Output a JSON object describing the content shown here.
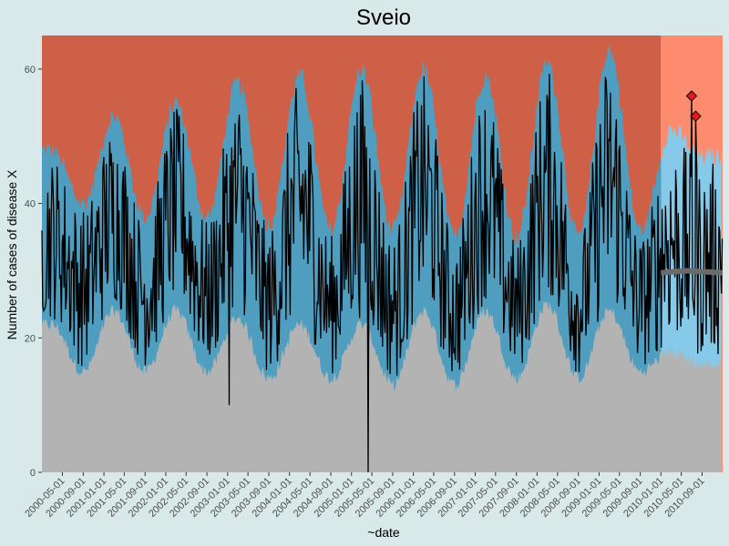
{
  "chart_data": {
    "type": "area",
    "title": "Sveio",
    "xlabel": "~date",
    "ylabel": "Number of cases of disease X",
    "ylim": [
      0,
      65
    ],
    "xlim": [
      "2000-01-01",
      "2010-12-31"
    ],
    "forecast_start": "2010-01-01",
    "yticks": [
      0,
      20,
      40,
      60
    ],
    "xticks": [
      "2000-05-01",
      "2000-09-01",
      "2001-01-01",
      "2001-05-01",
      "2001-09-01",
      "2002-01-01",
      "2002-05-01",
      "2002-09-01",
      "2003-01-01",
      "2003-05-01",
      "2003-09-01",
      "2004-01-01",
      "2004-05-01",
      "2004-09-01",
      "2005-01-01",
      "2005-05-01",
      "2005-09-01",
      "2006-01-01",
      "2006-05-01",
      "2006-09-01",
      "2007-01-01",
      "2007-05-01",
      "2007-09-01",
      "2008-01-01",
      "2008-05-01",
      "2008-09-01",
      "2009-01-01",
      "2009-05-01",
      "2009-09-01",
      "2010-01-01",
      "2010-05-01",
      "2010-09-01"
    ],
    "peak_dates": [
      "2000-03-01",
      "2001-03-01",
      "2002-03-01",
      "2003-03-01",
      "2004-03-01",
      "2005-03-01",
      "2006-03-01",
      "2007-03-01",
      "2008-03-01",
      "2009-03-01",
      "2010-03-01"
    ],
    "peak_uppers": [
      48,
      53,
      55,
      58,
      59,
      60,
      60,
      59,
      61,
      63,
      51
    ],
    "trough_dates": [
      "2000-09-01",
      "2001-09-01",
      "2002-09-01",
      "2003-09-01",
      "2004-09-01",
      "2005-09-01",
      "2006-09-01",
      "2007-09-01",
      "2008-09-01",
      "2009-09-01",
      "2010-09-01"
    ],
    "trough_uppers": [
      40,
      38,
      38,
      37,
      36,
      36,
      35,
      35,
      35,
      36,
      47
    ],
    "peak_lowers": [
      22,
      24,
      24,
      23,
      22,
      22,
      24,
      24,
      25,
      24,
      18
    ],
    "trough_lowers": [
      15,
      15,
      15,
      14,
      14,
      13,
      13,
      14,
      14,
      15,
      16
    ],
    "forecast_baseline": [
      {
        "date": "2010-01-01",
        "value": 29.7
      },
      {
        "date": "2010-06-01",
        "value": 30.0
      },
      {
        "date": "2010-12-31",
        "value": 29.7
      }
    ],
    "dips": [
      {
        "date": "2003-01-10",
        "value": 10
      },
      {
        "date": "2005-04-10",
        "value": 0
      }
    ],
    "outbreaks": [
      {
        "date": "2010-07-01",
        "value": 56
      },
      {
        "date": "2010-07-25",
        "value": 53
      }
    ],
    "colors": {
      "panel_background": "#cd6046",
      "forecast_background": "#fd8c6e",
      "normal_band": "#4f9ec0",
      "forecast_band": "#87c9e8",
      "below_band": "#b3b3b3",
      "observed_line": "#000000",
      "baseline_line": "#6b6b6b",
      "outbreak_marker": "#e8191c"
    }
  }
}
